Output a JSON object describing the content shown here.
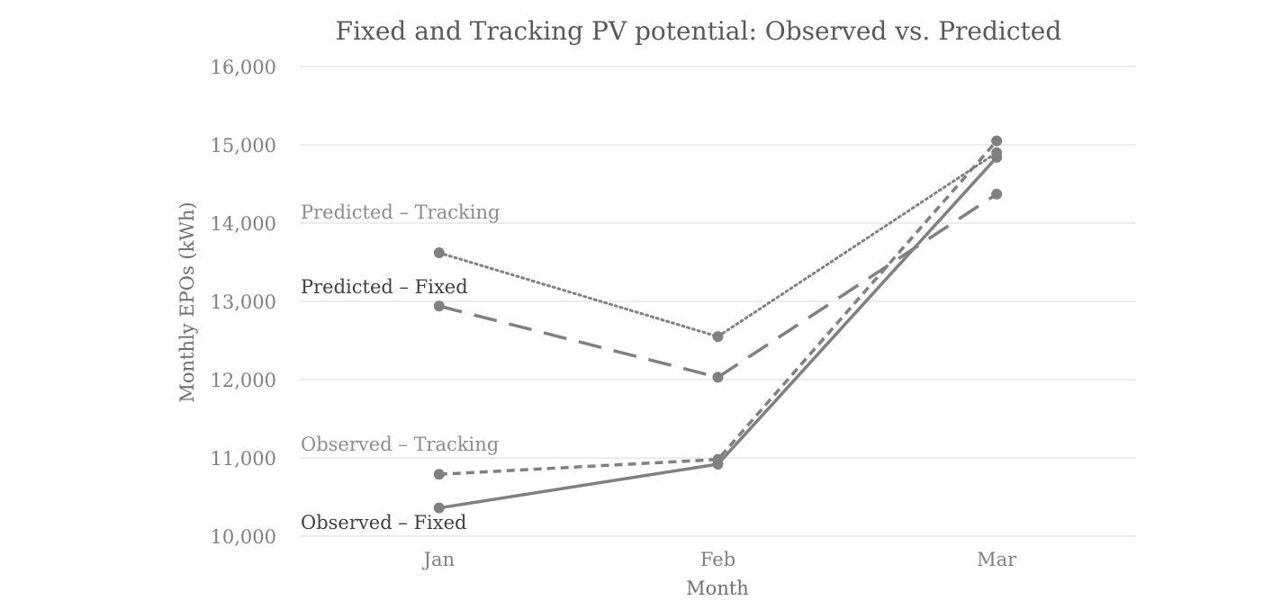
{
  "chart_data": {
    "type": "line",
    "title": "Fixed and Tracking PV potential: Observed vs. Predicted",
    "xlabel": "Month",
    "ylabel": "Monthly EPOs (kWh)",
    "categories": [
      "Jan",
      "Feb",
      "Mar"
    ],
    "ylim": [
      10000,
      16000
    ],
    "yticks": [
      10000,
      11000,
      12000,
      13000,
      14000,
      15000,
      16000
    ],
    "ytick_labels": [
      "10,000",
      "11,000",
      "12,000",
      "13,000",
      "14,000",
      "15,000",
      "16,000"
    ],
    "grid": true,
    "legend": "none",
    "series": [
      {
        "name": "Predicted – Tracking",
        "values": [
          13620,
          12550,
          14900
        ],
        "line_style": "dotted",
        "label_color": "#8c8c8c"
      },
      {
        "name": "Predicted – Fixed",
        "values": [
          12940,
          12030,
          14370
        ],
        "line_style": "long-dash",
        "label_color": "#404040"
      },
      {
        "name": "Observed – Tracking",
        "values": [
          10790,
          10980,
          15050
        ],
        "line_style": "short-dash",
        "label_color": "#8c8c8c"
      },
      {
        "name": "Observed – Fixed",
        "values": [
          10360,
          10920,
          14840
        ],
        "line_style": "solid",
        "label_color": "#404040"
      }
    ],
    "line_color": "#808080"
  }
}
